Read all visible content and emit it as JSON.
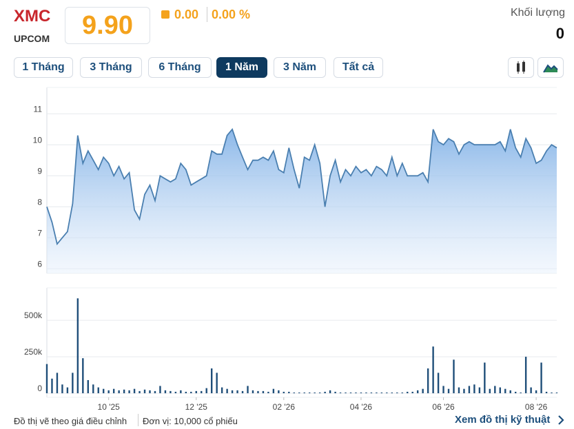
{
  "header": {
    "ticker": "XMC",
    "exchange": "UPCOM",
    "price": "9.90",
    "change": "0.00",
    "change_pct": "0.00 %",
    "volume_label": "Khối lượng",
    "volume": "0"
  },
  "periods": {
    "buttons": [
      "1 Tháng",
      "3 Tháng",
      "6 Tháng",
      "1 Năm",
      "3 Năm",
      "Tất cả"
    ],
    "active": 3
  },
  "footer": {
    "note": "Đồ thị vẽ theo giá điều chỉnh",
    "unit": "Đơn vị: 10,000 cổ phiếu",
    "link": "Xem đồ thị kỹ thuật"
  },
  "chart_data": [
    {
      "type": "area",
      "color": "#4a7fb0",
      "ylim": [
        5.85,
        11.85
      ],
      "yticks": [
        6,
        7,
        8,
        9,
        10,
        11
      ],
      "grid": true,
      "values": [
        8.0,
        7.5,
        6.8,
        7.0,
        7.2,
        8.1,
        10.3,
        9.4,
        9.8,
        9.5,
        9.2,
        9.6,
        9.4,
        9.0,
        9.3,
        8.9,
        9.1,
        7.9,
        7.6,
        8.4,
        8.7,
        8.2,
        9.0,
        8.9,
        8.8,
        8.9,
        9.4,
        9.2,
        8.7,
        8.8,
        8.9,
        9.0,
        9.8,
        9.7,
        9.7,
        10.3,
        10.5,
        10.0,
        9.6,
        9.2,
        9.5,
        9.5,
        9.6,
        9.5,
        9.8,
        9.2,
        9.1,
        9.9,
        9.2,
        8.6,
        9.6,
        9.5,
        10.0,
        9.4,
        8.0,
        9.0,
        9.5,
        8.8,
        9.2,
        9.0,
        9.3,
        9.1,
        9.2,
        9.0,
        9.3,
        9.2,
        9.0,
        9.6,
        9.0,
        9.4,
        9.0,
        9.0,
        9.0,
        9.1,
        8.8,
        10.5,
        10.1,
        10.0,
        10.2,
        10.1,
        9.7,
        10.0,
        10.1,
        10.0,
        10.0,
        10.0,
        10.0,
        10.0,
        10.1,
        9.8,
        10.5,
        9.9,
        9.6,
        10.2,
        9.9,
        9.4,
        9.5,
        9.8,
        10.0,
        9.9
      ]
    },
    {
      "type": "bar",
      "color": "#1f4e79",
      "ylim": [
        -28000,
        722000
      ],
      "yticks": [
        0,
        {
          "value": 250000,
          "label": "250k"
        },
        {
          "value": 500000,
          "label": "500k"
        }
      ],
      "grid": true,
      "categories": [
        null,
        null,
        null,
        null,
        null,
        null,
        null,
        null,
        null,
        null,
        null,
        null,
        "10 '25",
        null,
        null,
        null,
        null,
        null,
        null,
        null,
        null,
        null,
        null,
        null,
        null,
        null,
        null,
        null,
        null,
        "12 '25",
        null,
        null,
        null,
        null,
        null,
        null,
        null,
        null,
        null,
        null,
        null,
        null,
        null,
        null,
        null,
        null,
        "02 '26",
        null,
        null,
        null,
        null,
        null,
        null,
        null,
        null,
        null,
        null,
        null,
        null,
        null,
        null,
        "04 '26",
        null,
        null,
        null,
        null,
        null,
        null,
        null,
        null,
        null,
        null,
        null,
        null,
        null,
        null,
        null,
        "06 '26",
        null,
        null,
        null,
        null,
        null,
        null,
        null,
        null,
        null,
        null,
        null,
        null,
        null,
        null,
        null,
        null,
        null,
        "08 '26",
        null,
        null,
        null,
        null
      ],
      "values": [
        200000,
        100000,
        140000,
        60000,
        40000,
        140000,
        650000,
        240000,
        90000,
        60000,
        40000,
        30000,
        20000,
        30000,
        20000,
        25000,
        20000,
        30000,
        15000,
        25000,
        20000,
        15000,
        50000,
        20000,
        15000,
        10000,
        20000,
        10000,
        10000,
        15000,
        15000,
        35000,
        170000,
        140000,
        40000,
        30000,
        20000,
        20000,
        15000,
        50000,
        20000,
        15000,
        15000,
        10000,
        30000,
        20000,
        10000,
        10000,
        5000,
        5000,
        5000,
        5000,
        5000,
        5000,
        10000,
        20000,
        10000,
        5000,
        5000,
        5000,
        5000,
        5000,
        5000,
        5000,
        5000,
        5000,
        5000,
        5000,
        5000,
        5000,
        10000,
        10000,
        20000,
        30000,
        170000,
        320000,
        140000,
        50000,
        30000,
        230000,
        40000,
        30000,
        50000,
        60000,
        40000,
        210000,
        30000,
        50000,
        40000,
        30000,
        20000,
        10000,
        5000,
        250000,
        40000,
        20000,
        210000,
        10000,
        5000,
        5000
      ]
    }
  ]
}
